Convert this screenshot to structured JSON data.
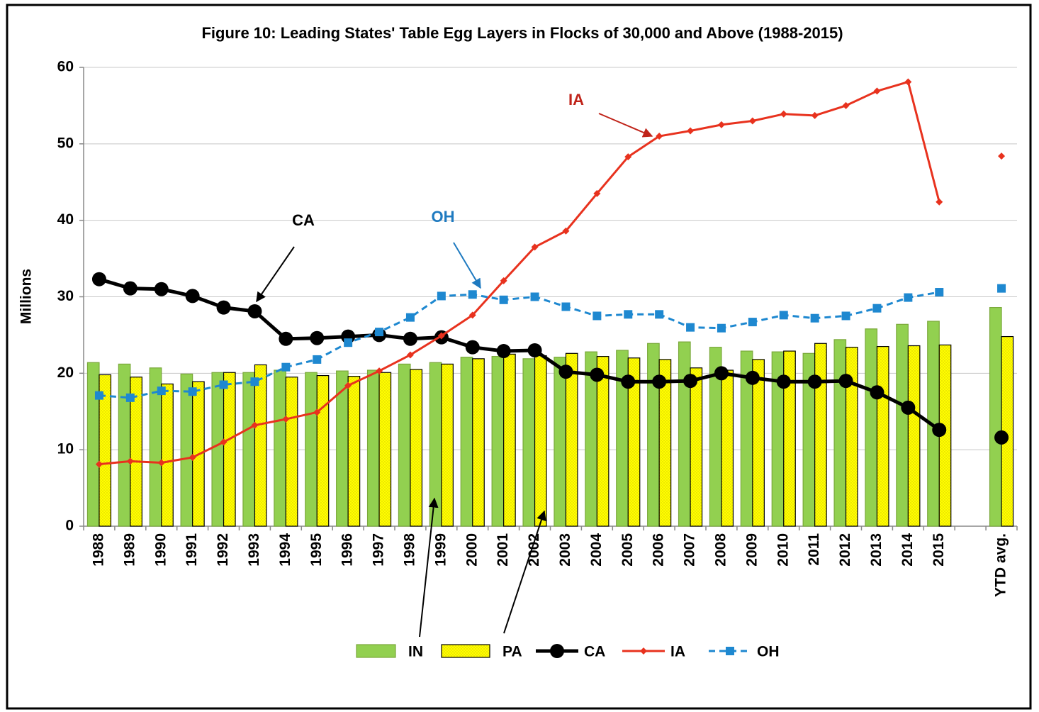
{
  "chart_data": {
    "type": "bar-line",
    "title": "Figure 10: Leading States' Table Egg Layers in Flocks of 30,000 and Above (1988-2015)",
    "y_label": "Millions",
    "categories": [
      "1988",
      "1989",
      "1990",
      "1991",
      "1992",
      "1993",
      "1994",
      "1995",
      "1996",
      "1997",
      "1998",
      "1999",
      "2000",
      "2001",
      "2002",
      "2003",
      "2004",
      "2005",
      "2006",
      "2007",
      "2008",
      "2009",
      "2010",
      "2011",
      "2012",
      "2013",
      "2014",
      "2015",
      null,
      "YTD avg."
    ],
    "series": [
      {
        "name": "IN",
        "type": "bar",
        "color": "#92d050",
        "values": [
          21.4,
          21.2,
          20.7,
          19.9,
          20.1,
          20.1,
          20.4,
          20.1,
          20.3,
          20.4,
          21.2,
          21.4,
          22.1,
          22.2,
          21.9,
          22.1,
          22.8,
          23.0,
          23.9,
          24.1,
          23.4,
          22.9,
          22.8,
          22.6,
          24.4,
          25.8,
          26.4,
          26.8,
          null,
          28.6
        ]
      },
      {
        "name": "PA",
        "type": "bar",
        "color": "#ffff00",
        "values": [
          19.8,
          19.5,
          18.6,
          18.9,
          20.1,
          21.1,
          19.5,
          19.7,
          19.6,
          20.1,
          20.5,
          21.2,
          21.9,
          22.5,
          22.3,
          22.6,
          22.2,
          22.0,
          21.8,
          20.7,
          20.4,
          21.8,
          22.9,
          23.9,
          23.4,
          23.5,
          23.6,
          23.7,
          null,
          24.8
        ]
      },
      {
        "name": "CA",
        "type": "line",
        "color": "#000000",
        "values": [
          32.3,
          31.1,
          31.0,
          30.1,
          28.6,
          28.1,
          24.5,
          24.6,
          24.8,
          25.0,
          24.5,
          24.7,
          23.4,
          22.9,
          23.0,
          20.2,
          19.8,
          18.9,
          18.9,
          19.0,
          20.0,
          19.4,
          18.9,
          18.9,
          19.0,
          17.5,
          15.5,
          12.6,
          null,
          11.6
        ]
      },
      {
        "name": "IA",
        "type": "line",
        "color": "#e8321e",
        "values": [
          8.1,
          8.5,
          8.3,
          9.0,
          11.0,
          13.2,
          14.0,
          14.9,
          18.4,
          20.3,
          22.4,
          24.9,
          27.6,
          32.1,
          36.5,
          38.6,
          43.5,
          48.3,
          51.0,
          51.7,
          52.5,
          53.0,
          53.9,
          53.7,
          55.0,
          56.9,
          58.1,
          42.4,
          null,
          48.4
        ]
      },
      {
        "name": "OH",
        "type": "line",
        "color": "#1e88d0",
        "values": [
          17.1,
          16.8,
          17.7,
          17.6,
          18.5,
          18.9,
          20.8,
          21.8,
          24.0,
          25.4,
          27.3,
          30.1,
          30.3,
          29.6,
          30.0,
          28.7,
          27.5,
          27.7,
          27.7,
          26.0,
          25.9,
          26.7,
          27.6,
          27.2,
          27.5,
          28.5,
          29.9,
          30.6,
          null,
          31.1
        ]
      }
    ],
    "annotations": [
      "CA",
      "OH",
      "IA"
    ],
    "ylim": [
      0,
      60
    ],
    "yticks": [
      0,
      10,
      20,
      30,
      40,
      50,
      60
    ],
    "grid": true,
    "legend": "bottom"
  }
}
